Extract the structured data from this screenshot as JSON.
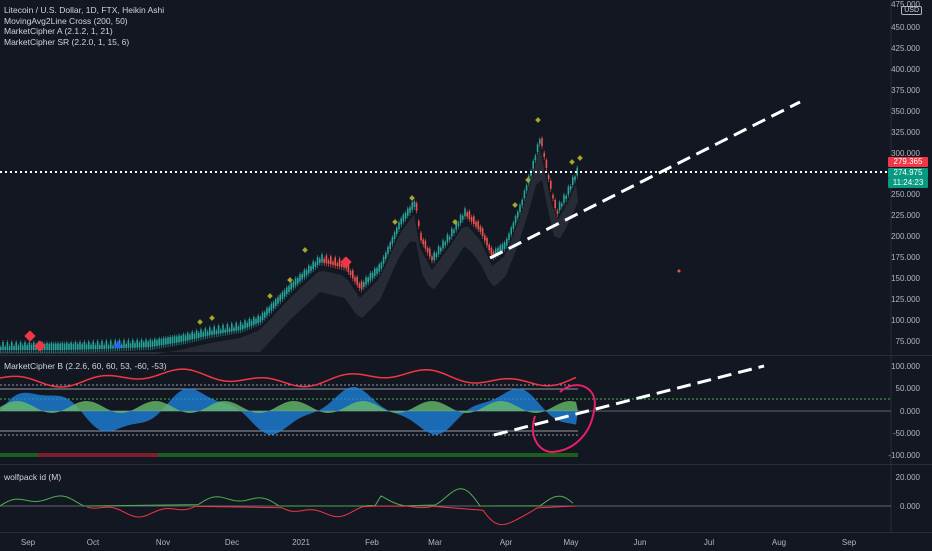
{
  "main": {
    "legend": [
      "Litecoin / U.S. Dollar, 1D, FTX, Heikin Ashi",
      "MovingAvg2Line Cross (200, 50)",
      "MarketCipher A (2.1.2, 1, 21)",
      "MarketCipher SR (2.2.0, 1, 15, 6)"
    ],
    "currency": "USD",
    "y_ticks": [
      "475.000",
      "450.000",
      "425.000",
      "400.000",
      "375.000",
      "350.000",
      "325.000",
      "300.000",
      "250.000",
      "225.000",
      "200.000",
      "175.000",
      "150.000",
      "125.000",
      "100.000",
      "75.000"
    ],
    "price_tags": {
      "upper": "279.365",
      "last": "274.975",
      "countdown": "11:24:23"
    },
    "colors": {
      "up": "#26a69a",
      "down": "#ef5350",
      "tag_red": "#f23645",
      "tag_green": "#089981",
      "dotted": "#ffffff"
    }
  },
  "cipher_b": {
    "legend": "MarketCipher B (2.2.6, 60, 60, 53, -60, -53)",
    "y_ticks": [
      "100.000",
      "50.000",
      "0.000",
      "-50.000",
      "-100.000"
    ]
  },
  "wolfpack": {
    "legend": "wolfpack id (M)",
    "y_ticks": [
      "20.000",
      "0.000"
    ]
  },
  "x_axis": [
    "Sep",
    "Oct",
    "Nov",
    "Dec",
    "2021",
    "Feb",
    "Mar",
    "Apr",
    "May",
    "Jun",
    "Jul",
    "Aug",
    "Sep"
  ]
}
